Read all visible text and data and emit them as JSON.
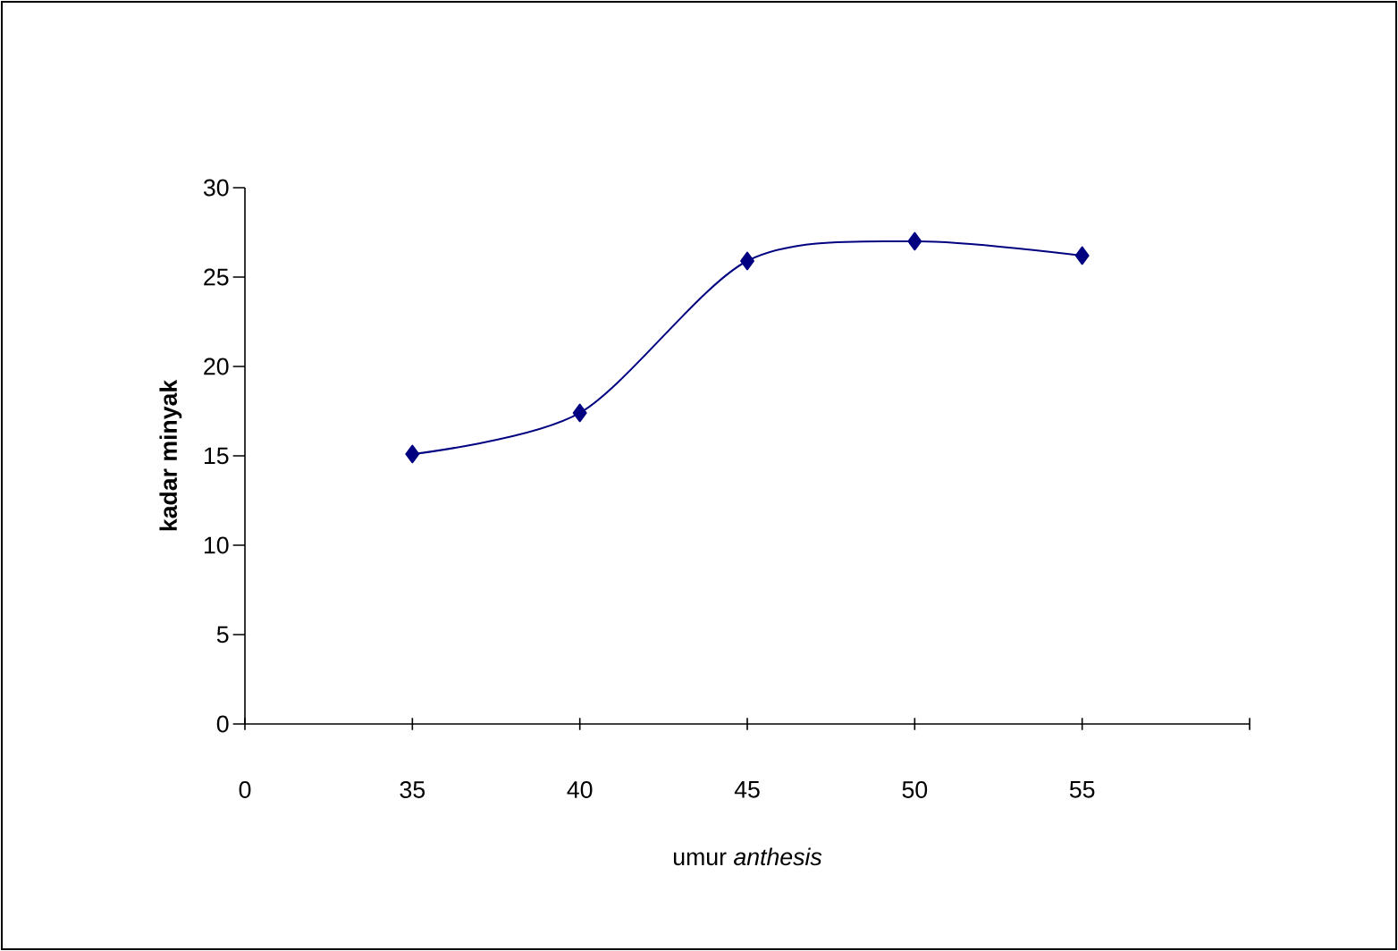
{
  "chart_data": {
    "type": "line",
    "xlabel": "umur *anthesis*",
    "ylabel": "kadar minyak",
    "categories": [
      "0",
      "35",
      "40",
      "45",
      "50",
      "55",
      null
    ],
    "values": [
      null,
      15.1,
      17.4,
      25.9,
      27,
      26.2,
      null
    ],
    "color": "#000080",
    "marker": "diamond",
    "line_style": "solid",
    "grid": false,
    "ylim": [
      0,
      30
    ],
    "yticks": [
      0,
      5,
      10,
      15,
      20,
      25,
      30
    ]
  }
}
